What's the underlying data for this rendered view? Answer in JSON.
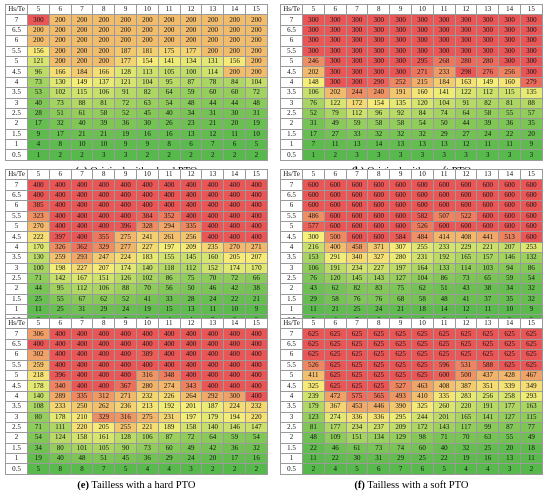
{
  "header_label": "Hs/Te",
  "periods": [
    "5",
    "6",
    "7",
    "8",
    "9",
    "10",
    "11",
    "12",
    "13",
    "14",
    "15"
  ],
  "heights": [
    "7",
    "6.5",
    "6",
    "5.5",
    "5",
    "4.5",
    "4",
    "3.5",
    "3",
    "2.5",
    "2",
    "1.5",
    "1",
    "0.5"
  ],
  "color_scale": {
    "low": "#55b84b",
    "mid": "#f6ef79",
    "high": "#ea5656",
    "max_value": 625
  },
  "panels": [
    {
      "caption_label": "(a)",
      "caption_text": "Original with a hard PTO",
      "rows": [
        [
          "300",
          "200",
          "200",
          "200",
          "200",
          "200",
          "200",
          "200",
          "200",
          "200",
          "200"
        ],
        [
          "200",
          "200",
          "200",
          "200",
          "200",
          "200",
          "200",
          "200",
          "200",
          "200",
          "200"
        ],
        [
          "200",
          "200",
          "200",
          "200",
          "200",
          "200",
          "200",
          "200",
          "200",
          "200",
          "200"
        ],
        [
          "156",
          "200",
          "200",
          "200",
          "187",
          "181",
          "175",
          "177",
          "200",
          "200",
          "200"
        ],
        [
          "121",
          "200",
          "200",
          "200",
          "177",
          "154",
          "141",
          "134",
          "131",
          "156",
          "200"
        ],
        [
          "96",
          "166",
          "184",
          "166",
          "128",
          "113",
          "105",
          "100",
          "114",
          "200",
          "200"
        ],
        [
          "73",
          "130",
          "149",
          "137",
          "121",
          "104",
          "95",
          "87",
          "78",
          "84",
          "104"
        ],
        [
          "53",
          "102",
          "115",
          "106",
          "91",
          "82",
          "64",
          "59",
          "60",
          "60",
          "72"
        ],
        [
          "40",
          "73",
          "88",
          "81",
          "72",
          "63",
          "54",
          "48",
          "44",
          "44",
          "48"
        ],
        [
          "28",
          "51",
          "61",
          "58",
          "52",
          "45",
          "40",
          "34",
          "31",
          "30",
          "31"
        ],
        [
          "17",
          "32",
          "40",
          "39",
          "36",
          "30",
          "26",
          "23",
          "21",
          "20",
          "19"
        ],
        [
          "9",
          "17",
          "21",
          "21",
          "19",
          "16",
          "16",
          "13",
          "12",
          "11",
          "10"
        ],
        [
          "4",
          "8",
          "10",
          "10",
          "9",
          "9",
          "8",
          "6",
          "7",
          "6",
          "5"
        ],
        [
          "1",
          "2",
          "2",
          "3",
          "3",
          "2",
          "2",
          "2",
          "2",
          "2",
          "2"
        ]
      ]
    },
    {
      "caption_label": "(b)",
      "caption_text": "Original with a soft PTO",
      "rows": [
        [
          "300",
          "300",
          "300",
          "300",
          "300",
          "300",
          "300",
          "300",
          "300",
          "300",
          "300"
        ],
        [
          "300",
          "300",
          "300",
          "300",
          "300",
          "300",
          "300",
          "300",
          "300",
          "300",
          "300"
        ],
        [
          "300",
          "300",
          "300",
          "300",
          "300",
          "300",
          "300",
          "300",
          "300",
          "300",
          "300"
        ],
        [
          "300",
          "300",
          "300",
          "300",
          "300",
          "300",
          "300",
          "300",
          "300",
          "300",
          "300"
        ],
        [
          "246",
          "300",
          "300",
          "300",
          "300",
          "295",
          "268",
          "280",
          "280",
          "300",
          "300"
        ],
        [
          "202",
          "300",
          "300",
          "300",
          "300",
          "271",
          "233",
          "298",
          "276",
          "256",
          "300"
        ],
        [
          "148",
          "300",
          "300",
          "290",
          "252",
          "215",
          "184",
          "163",
          "149",
          "160",
          "279"
        ],
        [
          "106",
          "202",
          "244",
          "240",
          "191",
          "160",
          "141",
          "122",
          "112",
          "115",
          "135"
        ],
        [
          "76",
          "122",
          "172",
          "154",
          "135",
          "120",
          "104",
          "91",
          "82",
          "81",
          "88"
        ],
        [
          "52",
          "79",
          "112",
          "96",
          "92",
          "84",
          "74",
          "64",
          "58",
          "55",
          "57"
        ],
        [
          "31",
          "49",
          "59",
          "58",
          "58",
          "54",
          "50",
          "44",
          "39",
          "36",
          "35"
        ],
        [
          "17",
          "27",
          "33",
          "32",
          "32",
          "32",
          "29",
          "27",
          "24",
          "22",
          "20"
        ],
        [
          "7",
          "11",
          "13",
          "14",
          "13",
          "13",
          "13",
          "12",
          "11",
          "11",
          "9"
        ],
        [
          "1",
          "2",
          "3",
          "3",
          "3",
          "3",
          "3",
          "3",
          "3",
          "3",
          "3"
        ]
      ]
    },
    {
      "caption_label": "(c)",
      "caption_text": "Short with a hard PTO",
      "rows": [
        [
          "400",
          "400",
          "400",
          "400",
          "400",
          "400",
          "400",
          "400",
          "400",
          "400",
          "400"
        ],
        [
          "400",
          "400",
          "400",
          "400",
          "400",
          "400",
          "400",
          "400",
          "400",
          "400",
          "400"
        ],
        [
          "385",
          "400",
          "400",
          "400",
          "400",
          "400",
          "400",
          "400",
          "400",
          "400",
          "400"
        ],
        [
          "323",
          "400",
          "400",
          "400",
          "400",
          "384",
          "352",
          "400",
          "400",
          "400",
          "400"
        ],
        [
          "270",
          "400",
          "400",
          "400",
          "396",
          "328",
          "294",
          "335",
          "400",
          "400",
          "400"
        ],
        [
          "222",
          "397",
          "400",
          "355",
          "275",
          "241",
          "261",
          "256",
          "400",
          "400",
          "400"
        ],
        [
          "170",
          "326",
          "362",
          "329",
          "277",
          "227",
          "197",
          "209",
          "235",
          "270",
          "271"
        ],
        [
          "130",
          "259",
          "293",
          "247",
          "224",
          "183",
          "155",
          "145",
          "160",
          "205",
          "207"
        ],
        [
          "100",
          "198",
          "227",
          "207",
          "174",
          "140",
          "118",
          "112",
          "152",
          "174",
          "170"
        ],
        [
          "71",
          "142",
          "167",
          "151",
          "126",
          "102",
          "86",
          "75",
          "70",
          "72",
          "66"
        ],
        [
          "44",
          "95",
          "112",
          "106",
          "88",
          "70",
          "56",
          "50",
          "46",
          "42",
          "38"
        ],
        [
          "25",
          "55",
          "67",
          "62",
          "52",
          "41",
          "33",
          "28",
          "24",
          "22",
          "21"
        ],
        [
          "11",
          "25",
          "31",
          "29",
          "24",
          "19",
          "15",
          "13",
          "11",
          "10",
          "9"
        ],
        [
          "3",
          "6",
          "8",
          "8",
          "7",
          "5",
          "4",
          "4",
          "3",
          "2",
          "2"
        ]
      ]
    },
    {
      "caption_label": "(d)",
      "caption_text": "Short with a soft PTO",
      "rows": [
        [
          "600",
          "600",
          "600",
          "600",
          "600",
          "600",
          "600",
          "600",
          "600",
          "600",
          "600"
        ],
        [
          "600",
          "600",
          "600",
          "600",
          "600",
          "600",
          "600",
          "600",
          "600",
          "600",
          "600"
        ],
        [
          "600",
          "600",
          "600",
          "600",
          "600",
          "600",
          "600",
          "600",
          "600",
          "600",
          "600"
        ],
        [
          "486",
          "600",
          "600",
          "600",
          "600",
          "582",
          "507",
          "522",
          "600",
          "600",
          "600"
        ],
        [
          "577",
          "600",
          "600",
          "600",
          "600",
          "526",
          "600",
          "600",
          "600",
          "600",
          "600"
        ],
        [
          "300",
          "500",
          "600",
          "600",
          "584",
          "484",
          "414",
          "408",
          "441",
          "513",
          "600"
        ],
        [
          "216",
          "400",
          "458",
          "371",
          "307",
          "255",
          "233",
          "229",
          "221",
          "207",
          "253"
        ],
        [
          "153",
          "291",
          "340",
          "327",
          "280",
          "231",
          "192",
          "165",
          "157",
          "146",
          "132"
        ],
        [
          "106",
          "191",
          "234",
          "227",
          "197",
          "164",
          "133",
          "114",
          "103",
          "94",
          "86"
        ],
        [
          "76",
          "120",
          "145",
          "143",
          "127",
          "104",
          "86",
          "73",
          "65",
          "59",
          "54"
        ],
        [
          "43",
          "62",
          "82",
          "83",
          "75",
          "62",
          "51",
          "43",
          "38",
          "34",
          "32"
        ],
        [
          "29",
          "58",
          "76",
          "76",
          "68",
          "58",
          "48",
          "41",
          "37",
          "35",
          "32"
        ],
        [
          "11",
          "21",
          "25",
          "24",
          "21",
          "18",
          "14",
          "12",
          "11",
          "10",
          "9"
        ],
        [
          "3",
          "4",
          "5",
          "6",
          "7",
          "6",
          "6",
          "4",
          "3",
          "2",
          "2"
        ]
      ]
    },
    {
      "caption_label": "(e)",
      "caption_text": "Tailless with a hard PTO",
      "rows": [
        [
          "306",
          "400",
          "400",
          "400",
          "400",
          "400",
          "400",
          "400",
          "400",
          "400",
          "400"
        ],
        [
          "400",
          "400",
          "400",
          "400",
          "400",
          "400",
          "400",
          "400",
          "400",
          "400",
          "400"
        ],
        [
          "302",
          "400",
          "400",
          "400",
          "400",
          "389",
          "400",
          "400",
          "400",
          "400",
          "400"
        ],
        [
          "259",
          "400",
          "400",
          "400",
          "400",
          "400",
          "400",
          "400",
          "400",
          "400",
          "400"
        ],
        [
          "218",
          "396",
          "400",
          "400",
          "400",
          "316",
          "348",
          "400",
          "400",
          "400",
          "400"
        ],
        [
          "178",
          "340",
          "400",
          "400",
          "367",
          "280",
          "274",
          "343",
          "400",
          "400",
          "400"
        ],
        [
          "140",
          "289",
          "335",
          "312",
          "271",
          "232",
          "226",
          "264",
          "292",
          "300",
          "400"
        ],
        [
          "108",
          "233",
          "250",
          "262",
          "236",
          "213",
          "192",
          "201",
          "187",
          "224",
          "232"
        ],
        [
          "80",
          "178",
          "210",
          "329",
          "316",
          "275",
          "231",
          "197",
          "179",
          "194",
          "220"
        ],
        [
          "71",
          "111",
          "220",
          "205",
          "255",
          "221",
          "189",
          "158",
          "140",
          "146",
          "147"
        ],
        [
          "54",
          "124",
          "158",
          "161",
          "128",
          "106",
          "87",
          "72",
          "64",
          "59",
          "54"
        ],
        [
          "34",
          "80",
          "101",
          "105",
          "90",
          "73",
          "60",
          "49",
          "42",
          "36",
          "32"
        ],
        [
          "19",
          "40",
          "48",
          "51",
          "45",
          "36",
          "29",
          "24",
          "20",
          "17",
          "16"
        ],
        [
          "5",
          "8",
          "8",
          "7",
          "5",
          "4",
          "4",
          "3",
          "2",
          "2",
          "2"
        ]
      ]
    },
    {
      "caption_label": "(f)",
      "caption_text": "Tailless with a soft PTO",
      "rows": [
        [
          "625",
          "625",
          "625",
          "625",
          "625",
          "625",
          "625",
          "625",
          "625",
          "625",
          "625"
        ],
        [
          "625",
          "625",
          "625",
          "625",
          "625",
          "625",
          "625",
          "625",
          "625",
          "625",
          "625"
        ],
        [
          "625",
          "625",
          "625",
          "625",
          "625",
          "625",
          "625",
          "625",
          "625",
          "625",
          "625"
        ],
        [
          "526",
          "625",
          "625",
          "625",
          "625",
          "625",
          "596",
          "531",
          "588",
          "625",
          "625"
        ],
        [
          "411",
          "625",
          "625",
          "625",
          "625",
          "625",
          "600",
          "500",
          "437",
          "428",
          "467"
        ],
        [
          "325",
          "625",
          "625",
          "625",
          "527",
          "463",
          "408",
          "387",
          "351",
          "339",
          "349"
        ],
        [
          "239",
          "472",
          "575",
          "565",
          "493",
          "410",
          "335",
          "283",
          "256",
          "258",
          "293"
        ],
        [
          "179",
          "367",
          "453",
          "446",
          "390",
          "325",
          "260",
          "220",
          "191",
          "177",
          "163"
        ],
        [
          "123",
          "274",
          "336",
          "336",
          "295",
          "244",
          "201",
          "165",
          "141",
          "127",
          "115"
        ],
        [
          "81",
          "177",
          "234",
          "237",
          "209",
          "172",
          "143",
          "117",
          "99",
          "87",
          "77"
        ],
        [
          "48",
          "109",
          "151",
          "134",
          "129",
          "98",
          "71",
          "70",
          "63",
          "55",
          "49"
        ],
        [
          "22",
          "46",
          "61",
          "73",
          "74",
          "60",
          "40",
          "32",
          "25",
          "20",
          "18"
        ],
        [
          "11",
          "22",
          "30",
          "31",
          "29",
          "25",
          "22",
          "19",
          "16",
          "13",
          "11"
        ],
        [
          "2",
          "4",
          "5",
          "6",
          "7",
          "6",
          "5",
          "4",
          "4",
          "3",
          "2"
        ]
      ]
    }
  ]
}
